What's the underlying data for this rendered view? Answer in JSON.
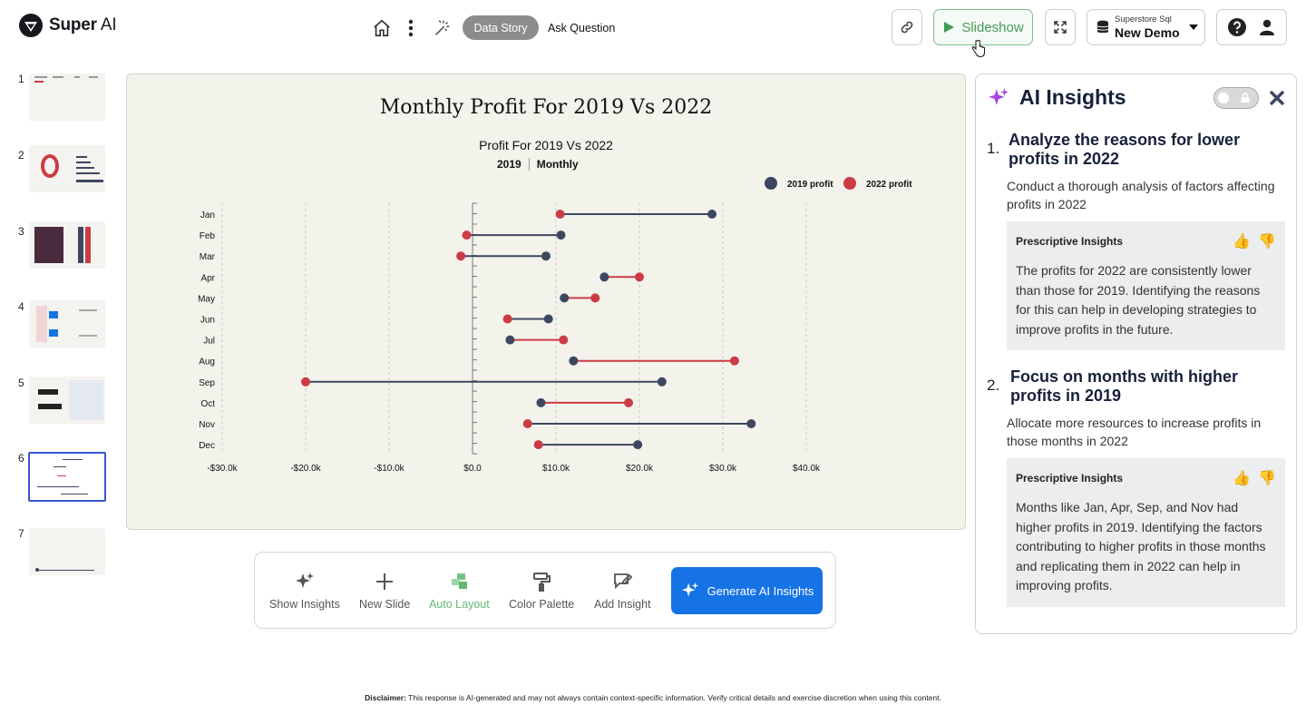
{
  "app": {
    "brand_strong": "Super",
    "brand_rest": " AI"
  },
  "header": {
    "tabs": [
      {
        "label": "Data Story",
        "active": true
      },
      {
        "label": "Ask Question",
        "active": false
      }
    ],
    "slideshow_label": "Slideshow",
    "datasource": {
      "sub": "Superstore Sql",
      "main": "New Demo"
    }
  },
  "thumbnails": [
    {
      "num": "1"
    },
    {
      "num": "2"
    },
    {
      "num": "3"
    },
    {
      "num": "4"
    },
    {
      "num": "5"
    },
    {
      "num": "6",
      "active": true
    },
    {
      "num": "7"
    }
  ],
  "slide": {
    "title": "Monthly Profit For 2019 Vs 2022"
  },
  "chart_data": {
    "type": "dumbbell",
    "title": "Profit For 2019 Vs 2022",
    "filters": [
      "2019",
      "Monthly"
    ],
    "categories": [
      "Jan",
      "Feb",
      "Mar",
      "Apr",
      "May",
      "Jun",
      "Jul",
      "Aug",
      "Sep",
      "Oct",
      "Nov",
      "Dec"
    ],
    "series": [
      {
        "name": "2019 profit",
        "color": "#3d4760",
        "values": [
          28700,
          10600,
          8800,
          15800,
          11000,
          9100,
          4500,
          12100,
          22700,
          8200,
          33400,
          19800
        ]
      },
      {
        "name": "2022 profit",
        "color": "#cc3b44",
        "values": [
          10500,
          -700,
          -1400,
          20000,
          14700,
          4200,
          10900,
          31400,
          -20000,
          18700,
          6600,
          7900
        ]
      }
    ],
    "x_ticks": [
      "-$30.0k",
      "-$20.0k",
      "-$10.0k",
      "$0.0",
      "$10.0k",
      "$20.0k",
      "$30.0k",
      "$40.0k"
    ],
    "x_tick_values": [
      -30000,
      -20000,
      -10000,
      0,
      10000,
      20000,
      30000,
      40000
    ],
    "xlim": [
      -30000,
      40000
    ],
    "legend_position": "top-right",
    "grid": true
  },
  "toolbar": {
    "show_insights": "Show Insights",
    "new_slide": "New Slide",
    "auto_layout": "Auto Layout",
    "color_palette": "Color Palette",
    "add_insight": "Add Insight",
    "generate": "Generate AI Insights"
  },
  "insights": {
    "title": "AI Insights",
    "items": [
      {
        "num": "1.",
        "title": "Analyze the reasons for lower profits in 2022",
        "desc": "Conduct a thorough analysis of factors affecting profits in 2022",
        "box_label": "Prescriptive Insights",
        "box_text": "The profits for 2022 are consistently lower than those for 2019. Identifying the reasons for this can help in developing strategies to improve profits in the future."
      },
      {
        "num": "2.",
        "title": "Focus on months with higher profits in 2019",
        "desc": "Allocate more resources to increase profits in those months in 2022",
        "box_label": "Prescriptive Insights",
        "box_text": "Months like Jan, Apr, Sep, and Nov had higher profits in 2019. Identifying the factors contributing to higher profits in those months and replicating them in 2022 can help in improving profits."
      }
    ]
  },
  "footer": {
    "disclaimer_label": "Disclaimer:",
    "disclaimer_text": " This response is AI-generated and may not always contain context-specific information. Verify critical details and exercise discretion when using this content."
  }
}
